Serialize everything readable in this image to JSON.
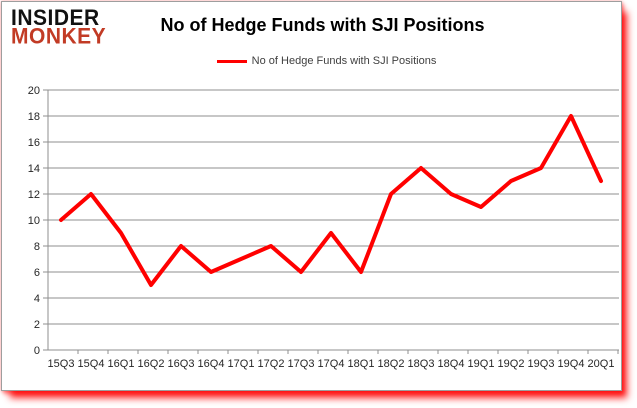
{
  "logo": {
    "line1": "INSIDER",
    "line2": "MONKEY"
  },
  "header": {
    "title": "No of Hedge Funds with SJI Positions"
  },
  "legend": {
    "label": "No of Hedge Funds with SJI Positions"
  },
  "colors": {
    "line": "#ff0000",
    "grid": "#8f8f8f",
    "axis_text": "#262626",
    "logo_black": "#111111",
    "logo_red": "#c23b25",
    "shadow": "#ff0000",
    "card_border": "#9e9e9e"
  },
  "chart_data": {
    "type": "line",
    "title": "No of Hedge Funds with SJI Positions",
    "categories": [
      "15Q3",
      "15Q4",
      "16Q1",
      "16Q2",
      "16Q3",
      "16Q4",
      "17Q1",
      "17Q2",
      "17Q3",
      "17Q4",
      "18Q1",
      "18Q2",
      "18Q3",
      "18Q4",
      "19Q1",
      "19Q2",
      "19Q3",
      "19Q4",
      "20Q1"
    ],
    "series": [
      {
        "name": "No of Hedge Funds with SJI Positions",
        "color": "#ff0000",
        "values": [
          10,
          12,
          9,
          5,
          8,
          6,
          7,
          8,
          6,
          9,
          6,
          12,
          14,
          12,
          11,
          13,
          14,
          18,
          13
        ]
      }
    ],
    "xlabel": "",
    "ylabel": "",
    "ylim": [
      0,
      20
    ],
    "ytick_step": 2,
    "grid": "horizontal",
    "legend_position": "top-center"
  }
}
